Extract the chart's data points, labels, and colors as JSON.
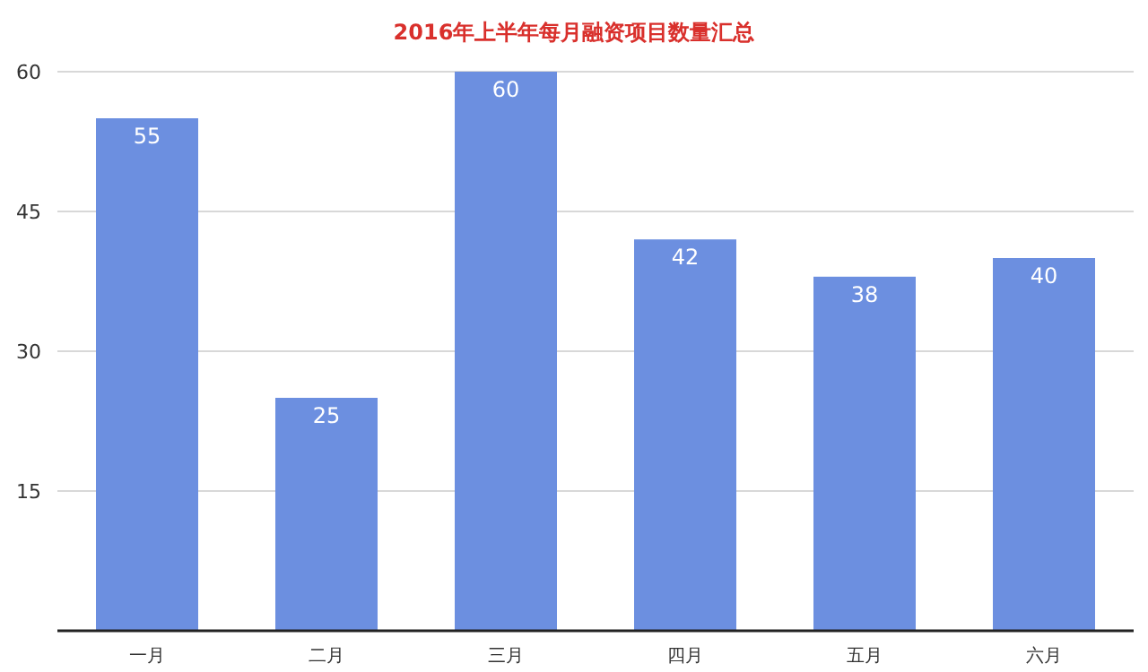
{
  "chart_data": {
    "type": "bar",
    "title": "2016年上半年每月融资项目数量汇总",
    "categories": [
      "一月",
      "二月",
      "三月",
      "四月",
      "五月",
      "六月"
    ],
    "values": [
      55,
      25,
      60,
      42,
      38,
      40
    ],
    "color": "#6c8fe0",
    "ylim": [
      0,
      60
    ],
    "yticks": [
      15,
      30,
      45,
      60
    ],
    "grid": "y",
    "data_labels": true
  }
}
